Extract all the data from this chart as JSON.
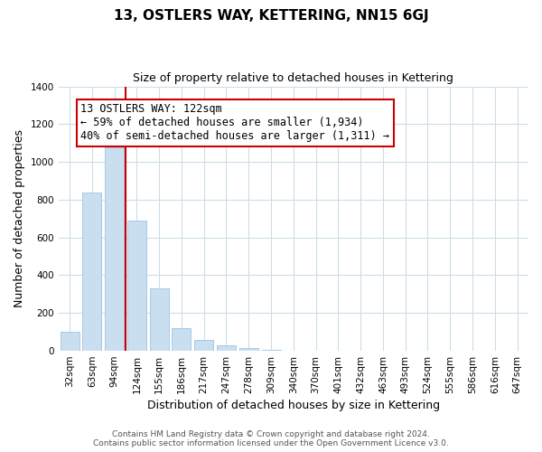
{
  "title": "13, OSTLERS WAY, KETTERING, NN15 6GJ",
  "subtitle": "Size of property relative to detached houses in Kettering",
  "xlabel": "Distribution of detached houses by size in Kettering",
  "ylabel": "Number of detached properties",
  "bar_labels": [
    "32sqm",
    "63sqm",
    "94sqm",
    "124sqm",
    "155sqm",
    "186sqm",
    "217sqm",
    "247sqm",
    "278sqm",
    "309sqm",
    "340sqm",
    "370sqm",
    "401sqm",
    "432sqm",
    "463sqm",
    "493sqm",
    "524sqm",
    "555sqm",
    "586sqm",
    "616sqm",
    "647sqm"
  ],
  "bar_values": [
    100,
    840,
    1075,
    690,
    330,
    120,
    60,
    30,
    15,
    5,
    0,
    0,
    0,
    0,
    0,
    0,
    0,
    0,
    0,
    0,
    0
  ],
  "bar_color": "#c9dff0",
  "bar_edge_color": "#a8c8e8",
  "vline_color": "#cc0000",
  "vline_index": 2.5,
  "annotation_text": "13 OSTLERS WAY: 122sqm\n← 59% of detached houses are smaller (1,934)\n40% of semi-detached houses are larger (1,311) →",
  "annotation_box_color": "#ffffff",
  "annotation_box_edge": "#cc0000",
  "ylim": [
    0,
    1400
  ],
  "yticks": [
    0,
    200,
    400,
    600,
    800,
    1000,
    1200,
    1400
  ],
  "footer_line1": "Contains HM Land Registry data © Crown copyright and database right 2024.",
  "footer_line2": "Contains public sector information licensed under the Open Government Licence v3.0.",
  "background_color": "#ffffff",
  "grid_color": "#ccdde8",
  "title_fontsize": 11,
  "subtitle_fontsize": 9,
  "ylabel_fontsize": 9,
  "xlabel_fontsize": 9,
  "tick_fontsize": 7.5,
  "annotation_fontsize": 8.5,
  "footer_fontsize": 6.5
}
